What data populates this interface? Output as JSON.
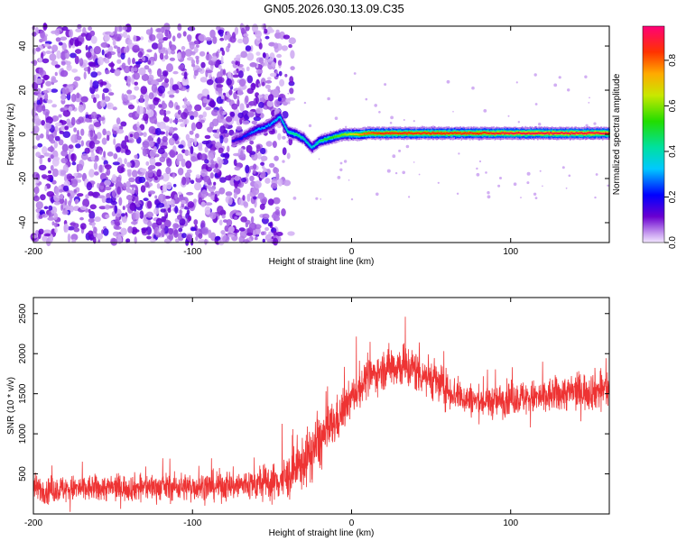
{
  "title": "GN05.2026.030.13.09.C35",
  "chart_data": [
    {
      "type": "heatmap",
      "xlabel": "Height of straight line (km)",
      "ylabel": "Frequency (Hz)",
      "xlim": [
        -200,
        162
      ],
      "ylim": [
        -49,
        49
      ],
      "xticks": [
        -200,
        -100,
        0,
        100
      ],
      "xtick_labels": [
        "-200",
        "-100",
        "0",
        "100"
      ],
      "yticks": [
        -40,
        -20,
        0,
        20,
        40
      ],
      "ytick_labels": [
        "-40",
        "-20",
        "0",
        "20",
        "40"
      ],
      "colorbar": {
        "label": "Normalized spectral amplitude",
        "range": [
          0,
          0.95
        ],
        "ticks": [
          0,
          0.2,
          0.4,
          0.6,
          0.8
        ],
        "tick_labels": [
          "0.0",
          "0.2",
          "0.4",
          "0.6",
          "0.8"
        ]
      },
      "noise_region_x": [
        -200,
        -45
      ],
      "ridge": {
        "x": [
          -75,
          -70,
          -65,
          -60,
          -55,
          -50,
          -45,
          -40,
          -35,
          -30,
          -25,
          -20,
          -15,
          -10,
          -5,
          0,
          5,
          10,
          20,
          40,
          60,
          80,
          100,
          130,
          162
        ],
        "frequency": [
          -3,
          -2,
          0,
          2,
          3,
          5,
          8,
          1,
          0,
          -2,
          -6,
          -3,
          -2,
          -1,
          0,
          0,
          0,
          0.5,
          0.5,
          0.5,
          0.5,
          0.5,
          0.5,
          0.5,
          0.5
        ],
        "amplitude": [
          0.15,
          0.2,
          0.25,
          0.3,
          0.3,
          0.3,
          0.35,
          0.4,
          0.45,
          0.4,
          0.35,
          0.45,
          0.5,
          0.55,
          0.6,
          0.65,
          0.75,
          0.8,
          0.85,
          0.85,
          0.85,
          0.85,
          0.9,
          0.9,
          0.9
        ]
      },
      "grid": false,
      "legend": "colorbar-right"
    },
    {
      "type": "line",
      "xlabel": "Height of straight line (km)",
      "ylabel": "SNR (10 * v/v)",
      "xlim": [
        -200,
        162
      ],
      "ylim": [
        0,
        2700
      ],
      "xticks": [
        -200,
        -100,
        0,
        100
      ],
      "xtick_labels": [
        "-200",
        "-100",
        "0",
        "100"
      ],
      "yticks": [
        500,
        1000,
        1500,
        2000,
        2500
      ],
      "ytick_labels": [
        "500",
        "1000",
        "1500",
        "2000",
        "2500"
      ],
      "series": [
        {
          "color": "#ee3333",
          "x": [
            -200,
            -180,
            -160,
            -140,
            -120,
            -100,
            -80,
            -60,
            -50,
            -40,
            -30,
            -20,
            -10,
            0,
            10,
            20,
            25,
            30,
            40,
            50,
            60,
            70,
            80,
            90,
            100,
            110,
            120,
            130,
            140,
            150,
            162
          ],
          "y": [
            300,
            310,
            320,
            330,
            335,
            340,
            350,
            370,
            390,
            450,
            650,
            900,
            1150,
            1450,
            1700,
            1800,
            1850,
            1850,
            1800,
            1700,
            1550,
            1450,
            1400,
            1400,
            1450,
            1450,
            1450,
            1500,
            1520,
            1540,
            1560
          ],
          "spread": [
            180,
            180,
            180,
            180,
            180,
            190,
            200,
            220,
            250,
            300,
            350,
            400,
            300,
            250,
            250,
            250,
            300,
            300,
            300,
            280,
            250,
            220,
            220,
            220,
            230,
            230,
            240,
            240,
            250,
            260,
            270
          ]
        }
      ],
      "grid": false
    }
  ]
}
